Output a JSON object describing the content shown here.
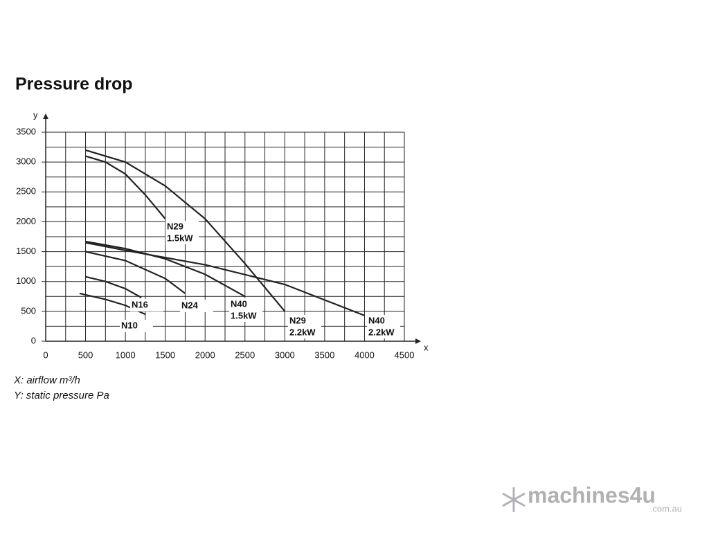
{
  "chart_data": {
    "type": "line",
    "title": "Pressure drop",
    "x_axis_label": "x",
    "y_axis_label": "y",
    "notes": [
      "X: airflow m³/h",
      "Y: static pressure Pa"
    ],
    "xlim": [
      0,
      4500
    ],
    "ylim": [
      0,
      3500
    ],
    "xticks": [
      0,
      500,
      1000,
      1500,
      2000,
      2500,
      3000,
      3500,
      4000,
      4500
    ],
    "yticks": [
      0,
      500,
      1000,
      1500,
      2000,
      2500,
      3000,
      3500
    ],
    "x_minor_grid": [
      250,
      750,
      1250,
      1750,
      2250,
      2750,
      3250,
      3750,
      4250
    ],
    "y_minor_grid": [
      250,
      750,
      1250,
      1750,
      2250,
      2750,
      3250
    ],
    "grid": true,
    "series": [
      {
        "name": "N10",
        "color": "#222222",
        "x": [
          425,
          750,
          1000,
          1250
        ],
        "values": [
          800,
          700,
          600,
          450
        ]
      },
      {
        "name": "N16",
        "color": "#222222",
        "x": [
          500,
          750,
          1000,
          1200
        ],
        "values": [
          1080,
          1000,
          880,
          730
        ]
      },
      {
        "name": "N24",
        "color": "#222222",
        "x": [
          500,
          1000,
          1500,
          1750
        ],
        "values": [
          1500,
          1350,
          1050,
          800
        ]
      },
      {
        "name": "N40",
        "power": "1.5kW",
        "color": "#222222",
        "x": [
          500,
          1000,
          1500,
          2000,
          2500
        ],
        "values": [
          1670,
          1550,
          1380,
          1120,
          750
        ]
      },
      {
        "name": "N29",
        "power": "2.2kW",
        "color": "#222222",
        "x": [
          500,
          1000,
          1500,
          2000,
          2500,
          3000
        ],
        "values": [
          3200,
          3000,
          2600,
          2050,
          1300,
          500
        ]
      },
      {
        "name": "N40",
        "power": "2.2kW",
        "color": "#222222",
        "x": [
          500,
          1000,
          2000,
          3000,
          4000
        ],
        "values": [
          1650,
          1520,
          1280,
          950,
          430
        ]
      },
      {
        "name": "N29",
        "power": "1.5kW",
        "color": "#222222",
        "x": [
          500,
          750,
          1000,
          1250,
          1500
        ],
        "values": [
          3100,
          3000,
          2800,
          2450,
          2050
        ]
      }
    ]
  },
  "watermark": {
    "brand": "machines4u",
    "domain": ".com.au"
  }
}
